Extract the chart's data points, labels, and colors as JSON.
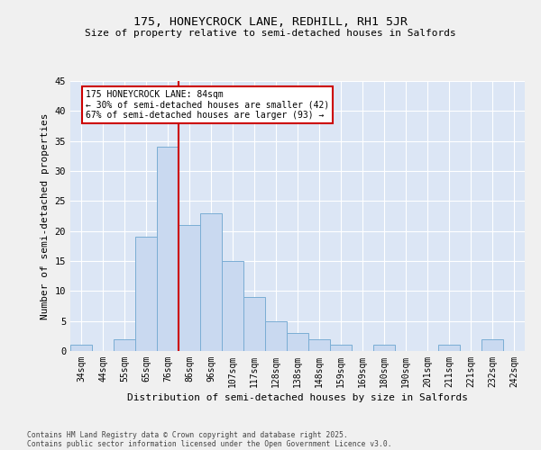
{
  "title1": "175, HONEYCROCK LANE, REDHILL, RH1 5JR",
  "title2": "Size of property relative to semi-detached houses in Salfords",
  "xlabel": "Distribution of semi-detached houses by size in Salfords",
  "ylabel": "Number of semi-detached properties",
  "categories": [
    "34sqm",
    "44sqm",
    "55sqm",
    "65sqm",
    "76sqm",
    "86sqm",
    "96sqm",
    "107sqm",
    "117sqm",
    "128sqm",
    "138sqm",
    "148sqm",
    "159sqm",
    "169sqm",
    "180sqm",
    "190sqm",
    "201sqm",
    "211sqm",
    "221sqm",
    "232sqm",
    "242sqm"
  ],
  "values": [
    1,
    0,
    2,
    19,
    34,
    21,
    23,
    15,
    9,
    5,
    3,
    2,
    1,
    0,
    1,
    0,
    0,
    1,
    0,
    2,
    0
  ],
  "bar_color": "#c9d9f0",
  "bar_edge_color": "#7aadd4",
  "vline_index": 4.5,
  "ylim": [
    0,
    45
  ],
  "yticks": [
    0,
    5,
    10,
    15,
    20,
    25,
    30,
    35,
    40,
    45
  ],
  "annotation_text": "175 HONEYCROCK LANE: 84sqm\n← 30% of semi-detached houses are smaller (42)\n67% of semi-detached houses are larger (93) →",
  "annotation_box_color": "#ffffff",
  "annotation_box_edge": "#cc0000",
  "vline_color": "#cc0000",
  "bg_color": "#dce6f5",
  "grid_color": "#ffffff",
  "fig_bg_color": "#f0f0f0",
  "footer1": "Contains HM Land Registry data © Crown copyright and database right 2025.",
  "footer2": "Contains public sector information licensed under the Open Government Licence v3.0."
}
